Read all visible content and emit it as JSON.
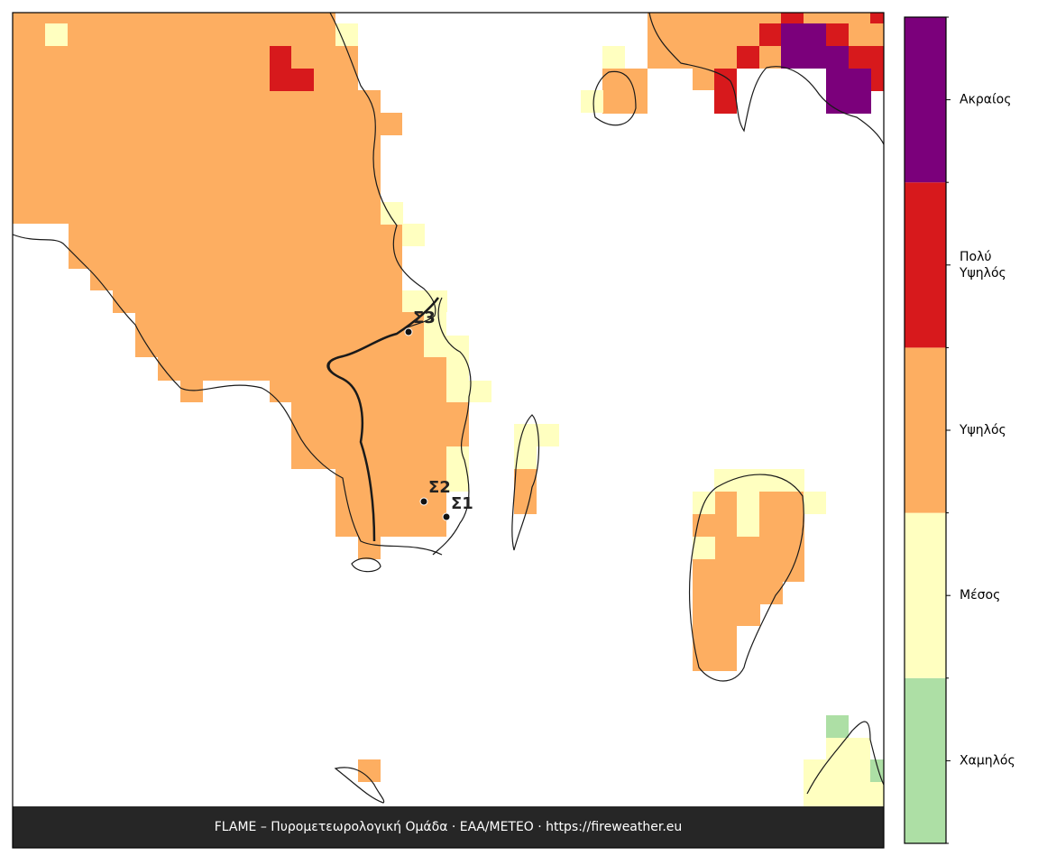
{
  "legend": {
    "levels": [
      {
        "label": "Χαμηλός",
        "color": "#addfa5"
      },
      {
        "label": "Μέσος",
        "color": "#ffffc0"
      },
      {
        "label": "Υψηλός",
        "color": "#fdae61"
      },
      {
        "lines": [
          "Πολύ",
          "Υψηλός"
        ],
        "color": "#d7191c"
      },
      {
        "label": "Ακραίος",
        "color": "#7b007b"
      }
    ]
  },
  "stations": [
    {
      "label": "Σ1"
    },
    {
      "label": "Σ2"
    },
    {
      "label": "Σ3"
    }
  ],
  "footer": "FLAME – Πυρομετεωρολογική Ομάδα · ΕΑΑ/METEO · https://fireweather.eu"
}
